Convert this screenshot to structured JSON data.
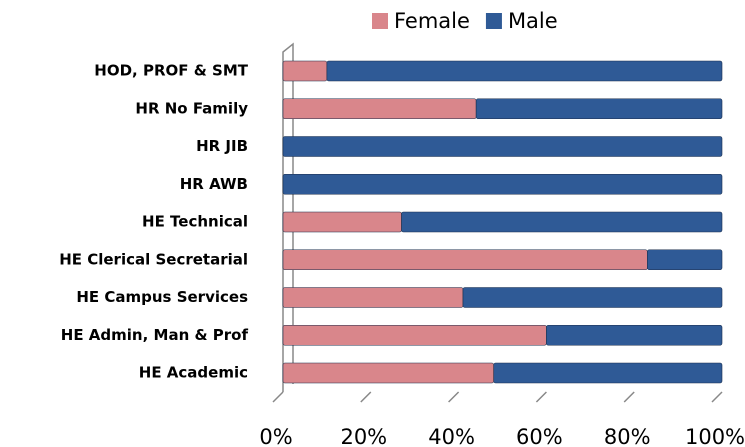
{
  "chart_data": {
    "type": "bar",
    "orientation": "horizontal",
    "stacked": true,
    "categories": [
      "HOD, PROF & SMT",
      "HR No Family",
      "HR JIB",
      "HR AWB",
      "HE Technical",
      "HE Clerical Secretarial",
      "HE Campus Services",
      "HE Admin, Man & Prof",
      "HE Academic"
    ],
    "series": [
      {
        "name": "Female",
        "color": "#d9868b",
        "values": [
          10,
          44,
          0,
          0,
          27,
          83,
          41,
          60,
          48
        ]
      },
      {
        "name": "Male",
        "color": "#2f5a96",
        "values": [
          90,
          56,
          100,
          100,
          73,
          17,
          59,
          40,
          52
        ]
      }
    ],
    "xlim": [
      0,
      100
    ],
    "xticks": [
      {
        "value": 0,
        "label": "0%"
      },
      {
        "value": 20,
        "label": "20%"
      },
      {
        "value": 40,
        "label": "40%"
      },
      {
        "value": 60,
        "label": "60%"
      },
      {
        "value": 80,
        "label": "80%"
      },
      {
        "value": 100,
        "label": "100%"
      }
    ],
    "legend": "top"
  }
}
